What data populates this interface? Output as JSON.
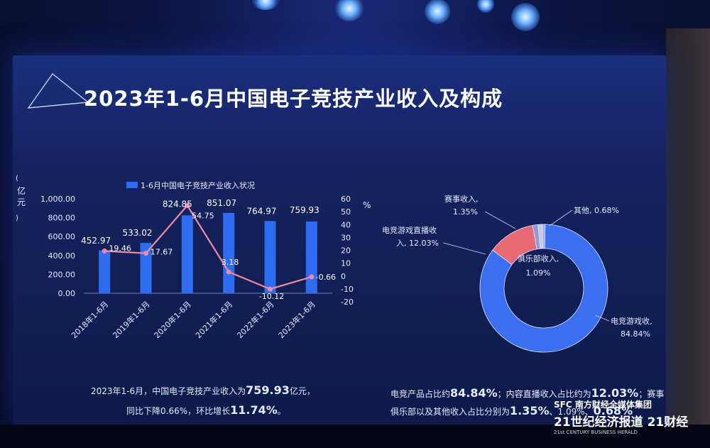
{
  "title": "2023年1-6月中国电子竞技产业收入及构成",
  "bar_chart": {
    "legend": "1-6月中国电子竞技产业收入状况",
    "left_axis_label": "亿元",
    "right_axis_label": "%",
    "left_ticks": [
      "1,000.00",
      "800.00",
      "600.00",
      "400.00",
      "200.00",
      "0.00"
    ],
    "right_ticks": [
      "60",
      "50",
      "40",
      "30",
      "20",
      "10",
      "0",
      "-10",
      "-20"
    ],
    "bar_value_labels": [
      "452.97",
      "533.02",
      "824.85",
      "851.07",
      "764.97",
      "759.93"
    ],
    "line_value_labels": [
      "19.46",
      "17.67",
      "54.75",
      "3.18",
      "-10.12",
      "-0.66"
    ]
  },
  "donut_chart": {
    "labels": [
      {
        "line1": "赛事收入,",
        "line2": "1.35%"
      },
      {
        "line1": "其他, 0.68%",
        "line2": ""
      },
      {
        "line1": "电竞游戏直播收",
        "line2": "入, 12.03%"
      },
      {
        "line1": "俱乐部收入,",
        "line2": "1.09%"
      },
      {
        "line1": "电竞游戏收入,",
        "line2": "84.84%"
      }
    ]
  },
  "summary_left": {
    "line1_prefix": "2023年1-6月，中国电子竞技产业收入为",
    "line1_value": "759.93",
    "line1_suffix": "亿元，",
    "line2_prefix": "同比下降0.66%，环比增长",
    "line2_value": "11.74%",
    "line2_suffix": "。"
  },
  "summary_right": {
    "line1_prefix": "电竞产品占比约",
    "line1_value1": "84.84%",
    "line1_mid": "；内容直播收入占比约为",
    "line1_value2": "12.03%",
    "line1_suffix": "；赛事",
    "line2_prefix": "俱乐部以及其他收入占比分别为",
    "line2_value1": "1.35%",
    "line2_mid": "、1.09%、",
    "line2_value2": "0.68%"
  },
  "watermark": {
    "line1": "SFC 南方财经全媒体集团",
    "line2": "21世纪经济报道  21财经",
    "line3": "21st CENTURY BUSINESS HERALD"
  },
  "chart_data": [
    {
      "type": "bar",
      "title": "2023年1-6月中国电子竞技产业收入及构成",
      "categories": [
        "2018年1-6月",
        "2019年1-6月",
        "2020年1-6月",
        "2021年1-6月",
        "2022年1-6月",
        "2023年1-6月"
      ],
      "series": [
        {
          "name": "1-6月中国电子竞技产业收入状况",
          "type": "bar",
          "axis": "left",
          "values": [
            452.97,
            533.02,
            824.85,
            851.07,
            764.97,
            759.93
          ]
        },
        {
          "type": "line",
          "axis": "right",
          "values": [
            19.46,
            17.67,
            54.75,
            3.18,
            -10.12,
            -0.66
          ]
        }
      ],
      "ylabel": "亿元",
      "y2label": "%",
      "ylim": [
        0,
        1000
      ],
      "y2lim": [
        -20,
        60
      ],
      "colors": {
        "bar": "#2e6cf0",
        "line": "#f08aa0"
      }
    },
    {
      "type": "pie",
      "variant": "donut",
      "categories": [
        "电竞游戏收入",
        "电竞游戏直播收入",
        "赛事收入",
        "俱乐部收入",
        "其他"
      ],
      "values": [
        84.84,
        12.03,
        1.35,
        1.09,
        0.68
      ],
      "colors": [
        "#3b6ef0",
        "#e86a75",
        "#8e9bd8",
        "#c9c9d6",
        "#9aa8ff"
      ]
    }
  ]
}
